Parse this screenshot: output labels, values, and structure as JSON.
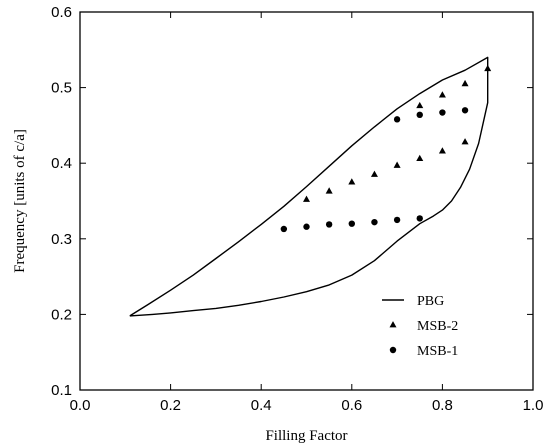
{
  "chart_data": {
    "type": "line",
    "xlabel": "Filling Factor",
    "ylabel": "Frequency [units of c/a]",
    "xlim": [
      0.0,
      1.0
    ],
    "ylim": [
      0.1,
      0.6
    ],
    "xticks": [
      "0.0",
      "0.2",
      "0.4",
      "0.6",
      "0.8",
      "1.0"
    ],
    "yticks": [
      "0.1",
      "0.2",
      "0.3",
      "0.4",
      "0.5",
      "0.6"
    ],
    "grid": false,
    "legend_position": "bottom-right",
    "series": [
      {
        "name": "PBG",
        "style": "line",
        "x": [
          0.11,
          0.15,
          0.2,
          0.25,
          0.3,
          0.35,
          0.4,
          0.45,
          0.5,
          0.55,
          0.6,
          0.65,
          0.7,
          0.75,
          0.8,
          0.85,
          0.9,
          0.9,
          0.88,
          0.86,
          0.84,
          0.82,
          0.8,
          0.78,
          0.75,
          0.7,
          0.65,
          0.6,
          0.55,
          0.5,
          0.45,
          0.4,
          0.35,
          0.3,
          0.25,
          0.2,
          0.16,
          0.11
        ],
        "y": [
          0.198,
          0.213,
          0.232,
          0.252,
          0.274,
          0.296,
          0.319,
          0.343,
          0.369,
          0.396,
          0.423,
          0.448,
          0.472,
          0.492,
          0.51,
          0.523,
          0.54,
          0.48,
          0.426,
          0.392,
          0.368,
          0.35,
          0.338,
          0.33,
          0.32,
          0.297,
          0.271,
          0.252,
          0.239,
          0.23,
          0.223,
          0.217,
          0.212,
          0.208,
          0.205,
          0.202,
          0.2,
          0.198
        ]
      },
      {
        "name": "MSB-2",
        "style": "triangle",
        "x": [
          0.5,
          0.55,
          0.6,
          0.65,
          0.7,
          0.75,
          0.8,
          0.85,
          0.9,
          0.75,
          0.8,
          0.85
        ],
        "y": [
          0.352,
          0.363,
          0.375,
          0.385,
          0.397,
          0.406,
          0.416,
          0.428,
          0.525,
          0.476,
          0.49,
          0.505
        ]
      },
      {
        "name": "MSB-1",
        "style": "circle",
        "x": [
          0.45,
          0.5,
          0.55,
          0.6,
          0.65,
          0.7,
          0.75,
          0.7,
          0.75,
          0.8,
          0.85
        ],
        "y": [
          0.313,
          0.316,
          0.319,
          0.32,
          0.322,
          0.325,
          0.327,
          0.458,
          0.464,
          0.467,
          0.47
        ]
      }
    ]
  }
}
